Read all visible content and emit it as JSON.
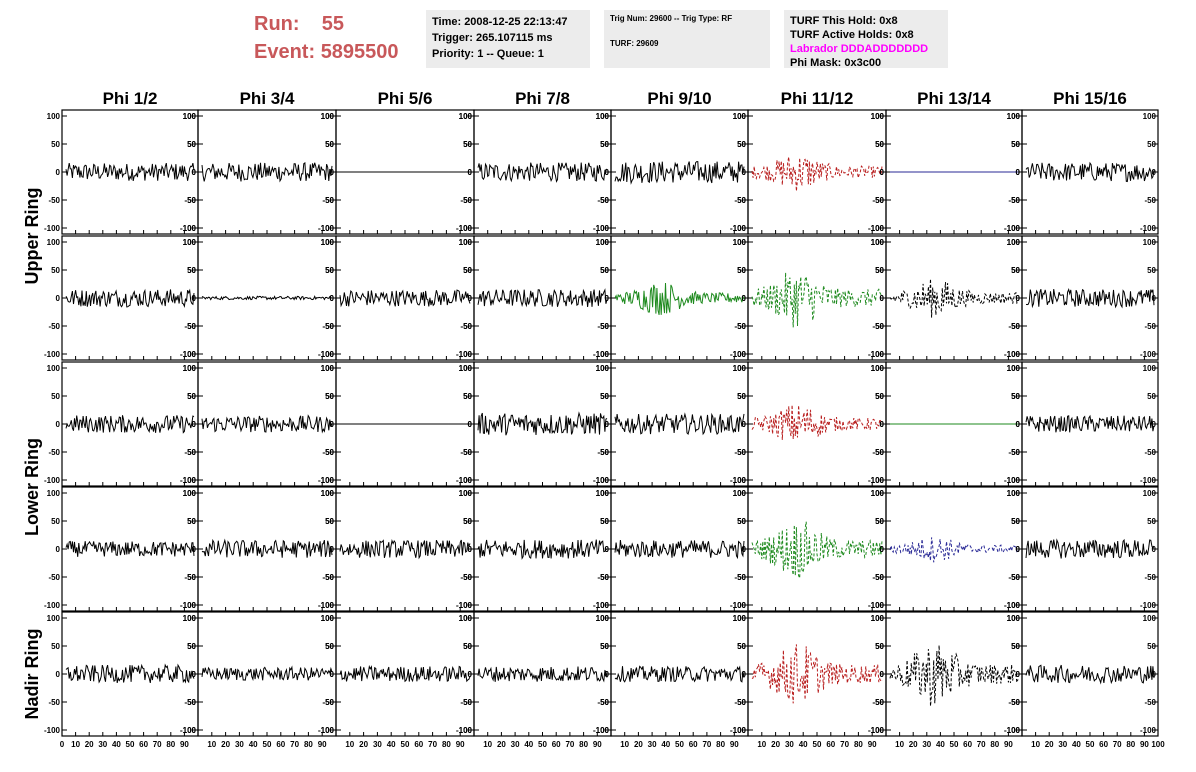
{
  "header": {
    "run_label": "Run:",
    "run_value": "55",
    "event_label": "Event:",
    "event_value": "5895500",
    "box1": {
      "time": "Time: 2008-12-25 22:13:47",
      "trigger": "Trigger: 265.107115 ms",
      "priority": "Priority: 1 -- Queue: 1"
    },
    "box2": {
      "trig": "Trig Num: 29600 -- Trig Type: RF",
      "turf": "TURF: 29609"
    },
    "box3": {
      "hold": "TURF This Hold: 0x8",
      "active": "TURF Active Holds: 0x8",
      "labrador": "Labrador DDDADDDDDDD",
      "phimask": "Phi Mask: 0x3c00"
    }
  },
  "colors": {
    "run_text": "#c8585a",
    "labrador": "#ff00ff",
    "red_trace": "#b81c1c",
    "green_trace": "#1e8a1e",
    "blue_trace": "#2a2a96",
    "black_trace": "#000000"
  },
  "chart_data": {
    "type": "line",
    "description_source": "grid of waveform panels; y axis -100..100, x axis 0..100",
    "columns": [
      "Phi 1/2",
      "Phi 3/4",
      "Phi 5/6",
      "Phi 7/8",
      "Phi 9/10",
      "Phi 11/12",
      "Phi 13/14",
      "Phi 15/16"
    ],
    "rows": [
      "Upper Ring",
      "Lower Ring",
      "Nadir Ring"
    ],
    "ylim": [
      -100,
      100
    ],
    "xlim": [
      0,
      100
    ],
    "y_ticks": [
      100,
      50,
      0,
      -50,
      -100
    ],
    "x_ticks": [
      0,
      10,
      20,
      30,
      40,
      50,
      60,
      70,
      80,
      90,
      100
    ],
    "x_tick_labels": [
      "0",
      "10",
      "20",
      "30",
      "40",
      "50",
      "60",
      "70",
      "80",
      "90",
      "100"
    ],
    "panels": [
      [
        {
          "style": "black",
          "amp": 16
        },
        {
          "style": "black",
          "amp": 17
        },
        {
          "style": "flat",
          "color": "black"
        },
        {
          "style": "black",
          "amp": 17
        },
        {
          "style": "black",
          "amp": 20
        },
        {
          "style": "dashed",
          "color": "red",
          "amp": 30,
          "burst": true
        },
        {
          "style": "flat",
          "color": "blue"
        },
        {
          "style": "black",
          "amp": 17
        }
      ],
      [
        {
          "style": "black",
          "amp": 16
        },
        {
          "style": "black",
          "amp": 3
        },
        {
          "style": "black",
          "amp": 15
        },
        {
          "style": "black",
          "amp": 16
        },
        {
          "style": "solid",
          "color": "green",
          "amp": 26,
          "burst": true
        },
        {
          "style": "dashed",
          "color": "green",
          "amp": 45,
          "burst": true
        },
        {
          "style": "dashed",
          "color": "black",
          "amp": 30,
          "burst": true
        },
        {
          "style": "black",
          "amp": 16
        }
      ],
      [
        {
          "style": "black",
          "amp": 16
        },
        {
          "style": "black",
          "amp": 15
        },
        {
          "style": "flat",
          "color": "black"
        },
        {
          "style": "black",
          "amp": 20
        },
        {
          "style": "black",
          "amp": 18
        },
        {
          "style": "dashed",
          "color": "red",
          "amp": 32,
          "burst": true
        },
        {
          "style": "flat",
          "color": "green"
        },
        {
          "style": "black",
          "amp": 15
        }
      ],
      [
        {
          "style": "black",
          "amp": 14
        },
        {
          "style": "black",
          "amp": 16
        },
        {
          "style": "black",
          "amp": 16
        },
        {
          "style": "black",
          "amp": 17
        },
        {
          "style": "black",
          "amp": 16
        },
        {
          "style": "dashed",
          "color": "green",
          "amp": 45,
          "burst": true
        },
        {
          "style": "dashed",
          "color": "blue",
          "amp": 20,
          "burst": true
        },
        {
          "style": "black",
          "amp": 17
        }
      ],
      [
        {
          "style": "black",
          "amp": 16
        },
        {
          "style": "black",
          "amp": 12
        },
        {
          "style": "black",
          "amp": 14
        },
        {
          "style": "black",
          "amp": 14
        },
        {
          "style": "black",
          "amp": 14
        },
        {
          "style": "dashed",
          "color": "red",
          "amp": 48,
          "burst": true
        },
        {
          "style": "dashed",
          "color": "black",
          "amp": 50,
          "burst": true
        },
        {
          "style": "black",
          "amp": 16
        }
      ]
    ]
  }
}
